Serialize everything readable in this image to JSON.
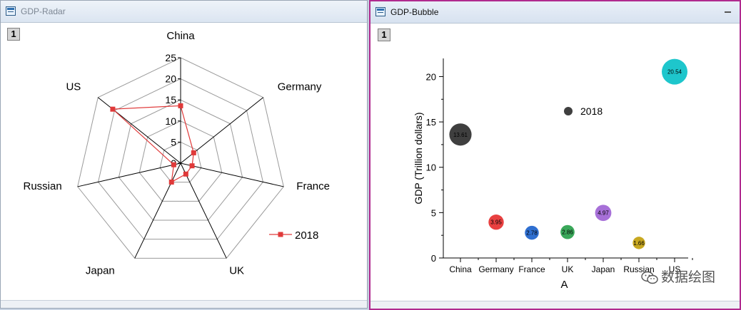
{
  "windows": {
    "radar": {
      "title": "GDP-Radar",
      "layer": "1"
    },
    "bubble": {
      "title": "GDP-Bubble",
      "layer": "1"
    }
  },
  "watermark": "数据绘图",
  "chart_data": [
    {
      "type": "radar",
      "axes": [
        "China",
        "Germany",
        "France",
        "UK",
        "Japan",
        "Russian",
        "US"
      ],
      "rlim": [
        0,
        25
      ],
      "ticks": [
        0,
        5,
        10,
        15,
        20,
        25
      ],
      "series": [
        {
          "name": "2018",
          "values": [
            13.61,
            3.95,
            2.78,
            2.86,
            4.97,
            1.66,
            20.54
          ],
          "color": "#e03a3a",
          "marker": "square"
        }
      ],
      "legend": "bottom-right",
      "grid": true,
      "colors": {
        "axis": "#000000",
        "grid": "#9a9a9a"
      }
    },
    {
      "type": "bubble",
      "categories": [
        "China",
        "Germany",
        "France",
        "UK",
        "Japan",
        "Russian",
        "US"
      ],
      "values": [
        13.61,
        3.95,
        2.78,
        2.86,
        4.97,
        1.66,
        20.54
      ],
      "labels": [
        "13.61",
        "3.95",
        "2.78",
        "2.86",
        "4.97",
        "1.66",
        "20.54"
      ],
      "colors": [
        "#3f3f3f",
        "#e84040",
        "#2f6fd0",
        "#3aa85a",
        "#a770d8",
        "#c8a820",
        "#1ec6cc"
      ],
      "xlabel": "A",
      "ylabel": "GDP (Trillion dollars)",
      "ylim": [
        0,
        22
      ],
      "yticks": [
        0,
        5,
        10,
        15,
        20
      ],
      "legend": {
        "label": "2018",
        "color": "#3f3f3f",
        "placement": "top-center"
      }
    }
  ]
}
